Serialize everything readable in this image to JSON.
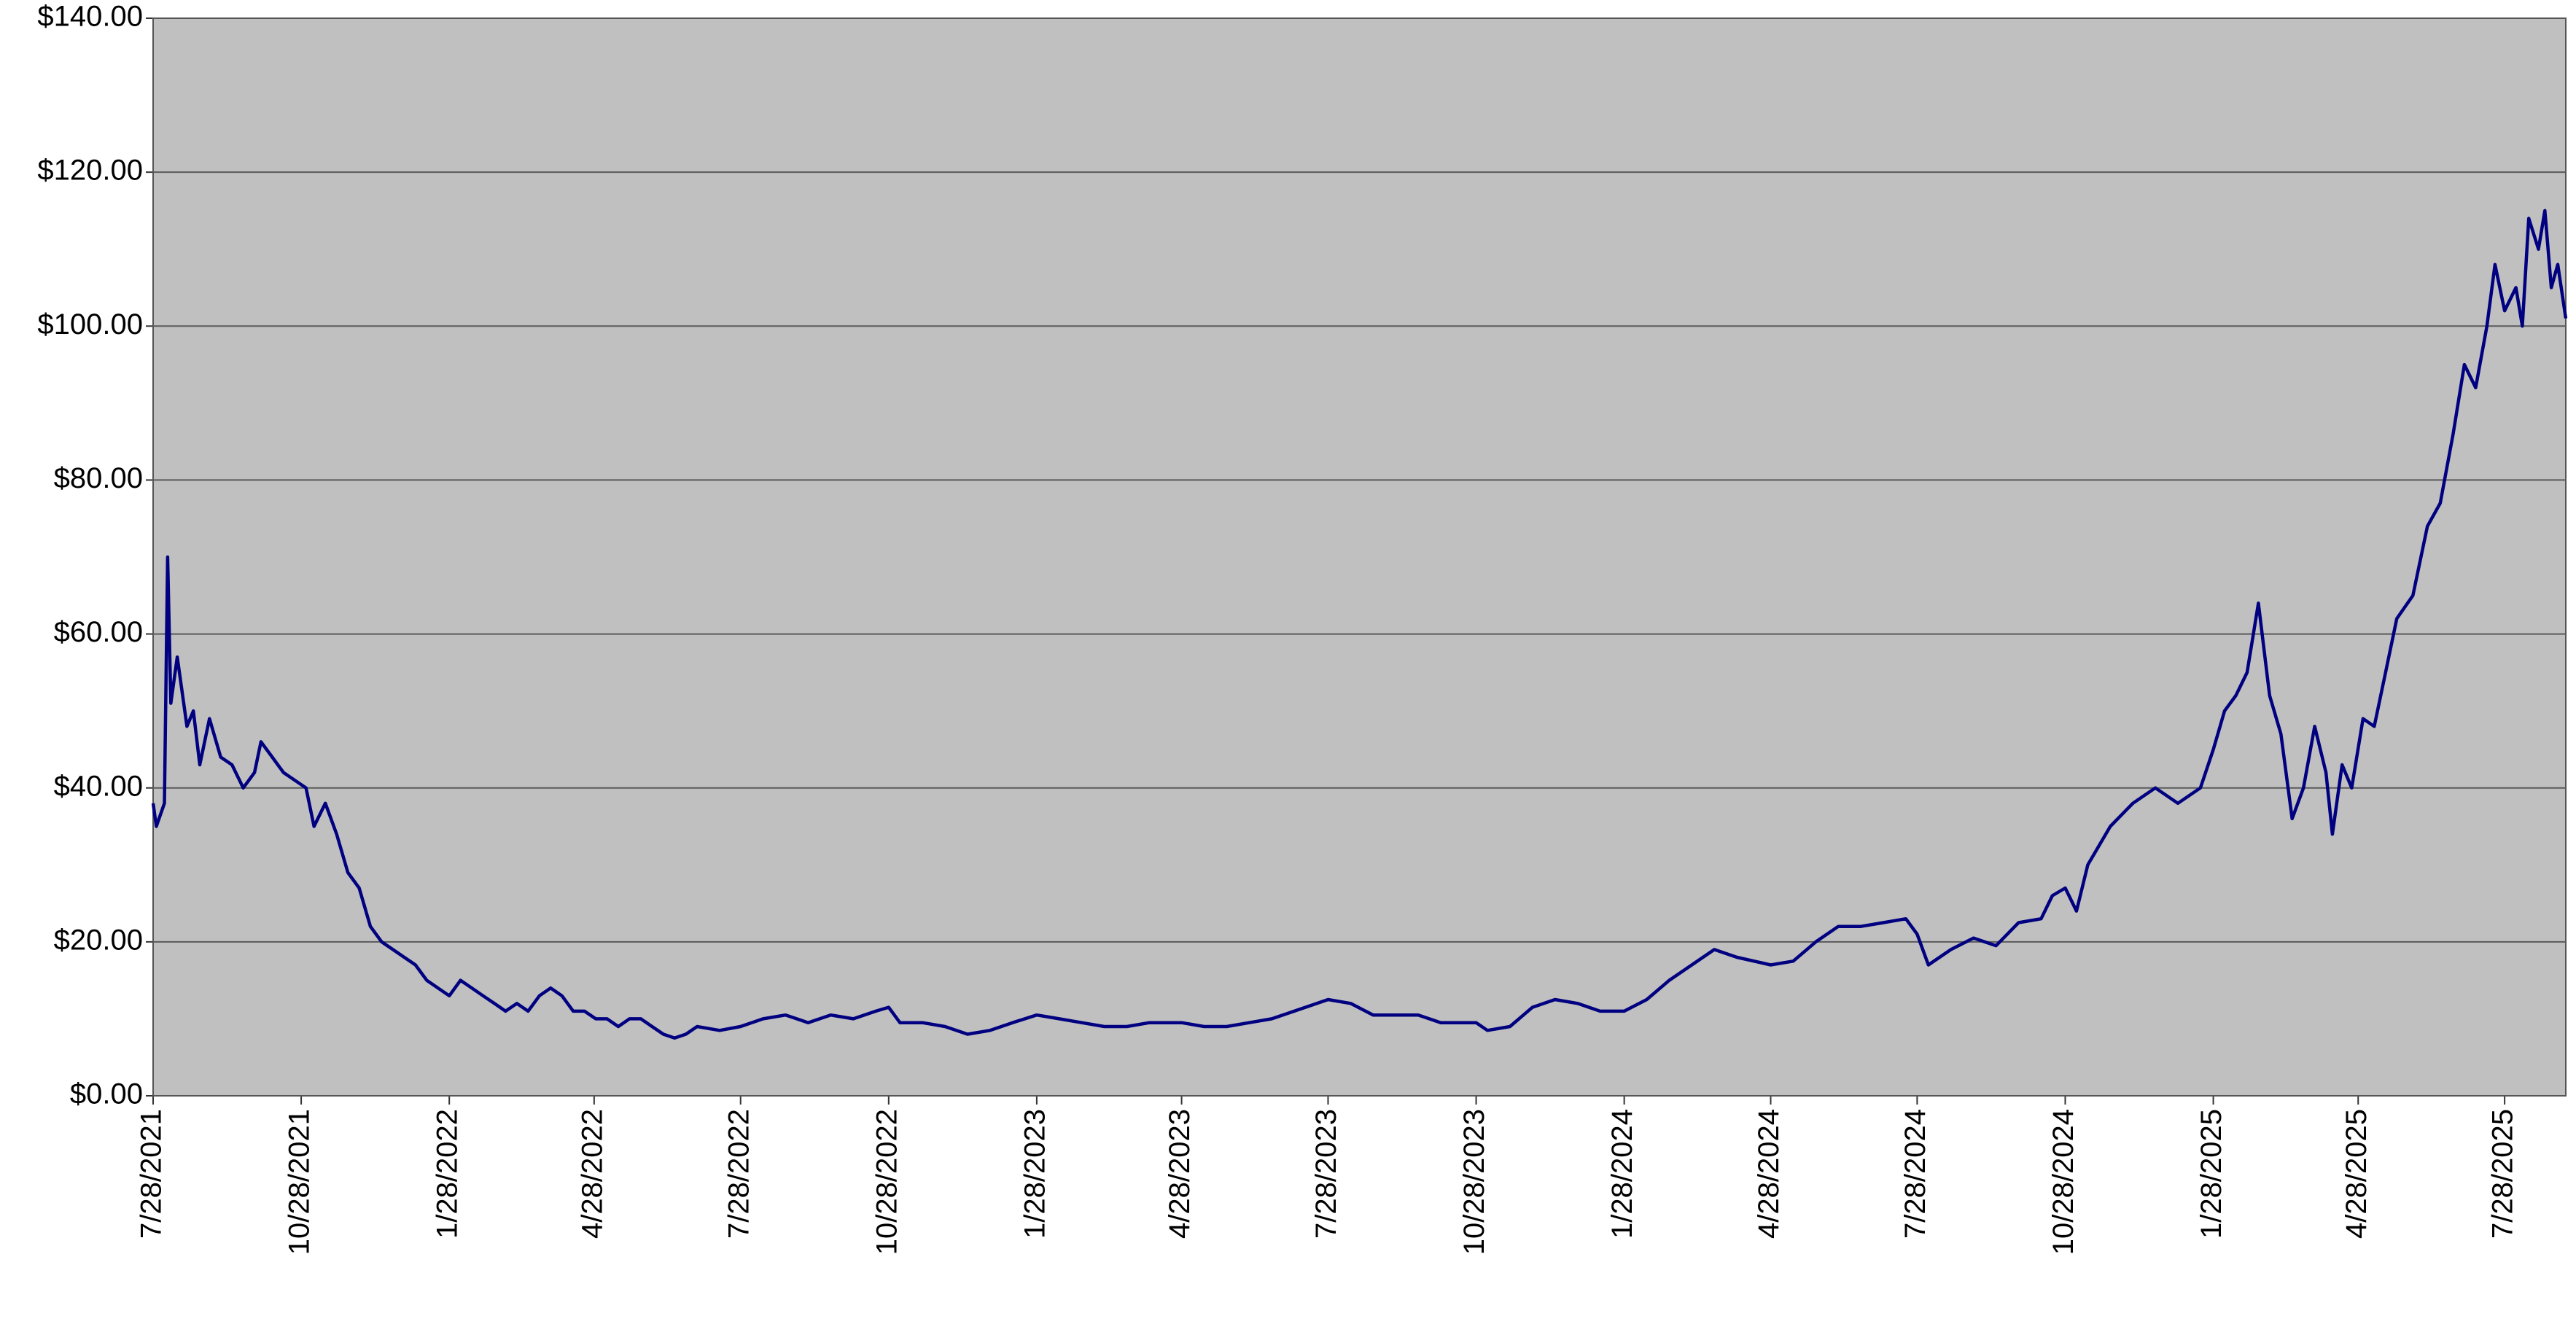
{
  "chart_data": {
    "type": "line",
    "x": [
      "2021-07-28",
      "2021-07-30",
      "2021-08-04",
      "2021-08-06",
      "2021-08-08",
      "2021-08-12",
      "2021-08-18",
      "2021-08-22",
      "2021-08-26",
      "2021-09-01",
      "2021-09-08",
      "2021-09-15",
      "2021-09-22",
      "2021-09-29",
      "2021-10-03",
      "2021-10-10",
      "2021-10-17",
      "2021-10-24",
      "2021-10-31",
      "2021-11-05",
      "2021-11-12",
      "2021-11-19",
      "2021-11-26",
      "2021-12-03",
      "2021-12-10",
      "2021-12-17",
      "2021-12-24",
      "2021-12-31",
      "2022-01-07",
      "2022-01-14",
      "2022-01-21",
      "2022-01-28",
      "2022-02-04",
      "2022-02-11",
      "2022-02-18",
      "2022-02-25",
      "2022-03-04",
      "2022-03-11",
      "2022-03-18",
      "2022-03-25",
      "2022-04-01",
      "2022-04-08",
      "2022-04-15",
      "2022-04-22",
      "2022-04-29",
      "2022-05-06",
      "2022-05-13",
      "2022-05-20",
      "2022-05-27",
      "2022-06-03",
      "2022-06-10",
      "2022-06-17",
      "2022-06-24",
      "2022-07-01",
      "2022-07-15",
      "2022-07-28",
      "2022-08-11",
      "2022-08-25",
      "2022-09-08",
      "2022-09-22",
      "2022-10-06",
      "2022-10-20",
      "2022-10-28",
      "2022-11-04",
      "2022-11-18",
      "2022-12-02",
      "2022-12-16",
      "2022-12-30",
      "2023-01-13",
      "2023-01-28",
      "2023-02-11",
      "2023-02-25",
      "2023-03-11",
      "2023-03-25",
      "2023-04-08",
      "2023-04-28",
      "2023-05-12",
      "2023-05-26",
      "2023-06-09",
      "2023-06-23",
      "2023-07-07",
      "2023-07-28",
      "2023-08-11",
      "2023-08-25",
      "2023-09-08",
      "2023-09-22",
      "2023-10-06",
      "2023-10-28",
      "2023-11-04",
      "2023-11-18",
      "2023-12-02",
      "2023-12-16",
      "2023-12-30",
      "2024-01-13",
      "2024-01-28",
      "2024-02-11",
      "2024-02-25",
      "2024-03-10",
      "2024-03-24",
      "2024-04-07",
      "2024-04-28",
      "2024-05-12",
      "2024-05-26",
      "2024-06-09",
      "2024-06-23",
      "2024-07-07",
      "2024-07-21",
      "2024-07-28",
      "2024-08-04",
      "2024-08-18",
      "2024-09-01",
      "2024-09-15",
      "2024-09-29",
      "2024-10-13",
      "2024-10-20",
      "2024-10-28",
      "2024-11-04",
      "2024-11-11",
      "2024-11-25",
      "2024-12-09",
      "2024-12-23",
      "2025-01-06",
      "2025-01-20",
      "2025-01-28",
      "2025-02-04",
      "2025-02-11",
      "2025-02-18",
      "2025-02-25",
      "2025-03-04",
      "2025-03-11",
      "2025-03-18",
      "2025-03-25",
      "2025-04-01",
      "2025-04-08",
      "2025-04-12",
      "2025-04-18",
      "2025-04-24",
      "2025-05-01",
      "2025-05-08",
      "2025-05-15",
      "2025-05-22",
      "2025-06-01",
      "2025-06-10",
      "2025-06-18",
      "2025-06-26",
      "2025-07-03",
      "2025-07-10",
      "2025-07-17",
      "2025-07-22",
      "2025-07-28",
      "2025-08-04",
      "2025-08-08",
      "2025-08-12",
      "2025-08-18",
      "2025-08-22",
      "2025-08-26",
      "2025-08-30",
      "2025-09-04"
    ],
    "series": [
      {
        "color": "#000080",
        "values": [
          38,
          35,
          38,
          70,
          51,
          57,
          48,
          50,
          43,
          49,
          44,
          43,
          40,
          42,
          46,
          44,
          42,
          41,
          40,
          35,
          38,
          34,
          29,
          27,
          22,
          20,
          19,
          18,
          17,
          15,
          14,
          13,
          15,
          14,
          13,
          12,
          11,
          12,
          11,
          13,
          14,
          13,
          11,
          11,
          10,
          10,
          9,
          10,
          10,
          9,
          8,
          7.5,
          8,
          9,
          8.5,
          9,
          10,
          10.5,
          9.5,
          10.5,
          10,
          11,
          11.5,
          9.5,
          9.5,
          9,
          8,
          8.5,
          9.5,
          10.5,
          10,
          9.5,
          9,
          9,
          9.5,
          9.5,
          9,
          9,
          9.5,
          10,
          11,
          12.5,
          12,
          10.5,
          10.5,
          10.5,
          9.5,
          9.5,
          8.5,
          9,
          11.5,
          12.5,
          12,
          11,
          11,
          12.5,
          15,
          17,
          19,
          18,
          17,
          17.5,
          20,
          22,
          22,
          22.5,
          23,
          21,
          17,
          19,
          20.5,
          19.5,
          22.5,
          23,
          26,
          27,
          24,
          30,
          35,
          38,
          40,
          38,
          40,
          45,
          50,
          52,
          55,
          64,
          52,
          47,
          36,
          40,
          48,
          42,
          34,
          43,
          40,
          49,
          48,
          55,
          62,
          65,
          74,
          77,
          86,
          95,
          92,
          100,
          108,
          102,
          105,
          100,
          114,
          110,
          115,
          105,
          108,
          101
        ]
      }
    ],
    "xlim": [
      "2021-07-28",
      "2025-09-04"
    ],
    "xticks": [
      {
        "value": "2021-07-28",
        "label": "7/28/2021"
      },
      {
        "value": "2021-10-28",
        "label": "10/28/2021"
      },
      {
        "value": "2022-01-28",
        "label": "1/28/2022"
      },
      {
        "value": "2022-04-28",
        "label": "4/28/2022"
      },
      {
        "value": "2022-07-28",
        "label": "7/28/2022"
      },
      {
        "value": "2022-10-28",
        "label": "10/28/2022"
      },
      {
        "value": "2023-01-28",
        "label": "1/28/2023"
      },
      {
        "value": "2023-04-28",
        "label": "4/28/2023"
      },
      {
        "value": "2023-07-28",
        "label": "7/28/2023"
      },
      {
        "value": "2023-10-28",
        "label": "10/28/2023"
      },
      {
        "value": "2024-01-28",
        "label": "1/28/2024"
      },
      {
        "value": "2024-04-28",
        "label": "4/28/2024"
      },
      {
        "value": "2024-07-28",
        "label": "7/28/2024"
      },
      {
        "value": "2024-10-28",
        "label": "10/28/2024"
      },
      {
        "value": "2025-01-28",
        "label": "1/28/2025"
      },
      {
        "value": "2025-04-28",
        "label": "4/28/2025"
      },
      {
        "value": "2025-07-28",
        "label": "7/28/2025"
      }
    ],
    "ylim": [
      0,
      140
    ],
    "yticks": [
      {
        "value": 0,
        "label": "$0.00"
      },
      {
        "value": 20,
        "label": "$20.00"
      },
      {
        "value": 40,
        "label": "$40.00"
      },
      {
        "value": 60,
        "label": "$60.00"
      },
      {
        "value": 80,
        "label": "$80.00"
      },
      {
        "value": 100,
        "label": "$100.00"
      },
      {
        "value": 120,
        "label": "$120.00"
      },
      {
        "value": 140,
        "label": "$140.00"
      }
    ],
    "grid": true,
    "background": "#c0c0c0"
  }
}
